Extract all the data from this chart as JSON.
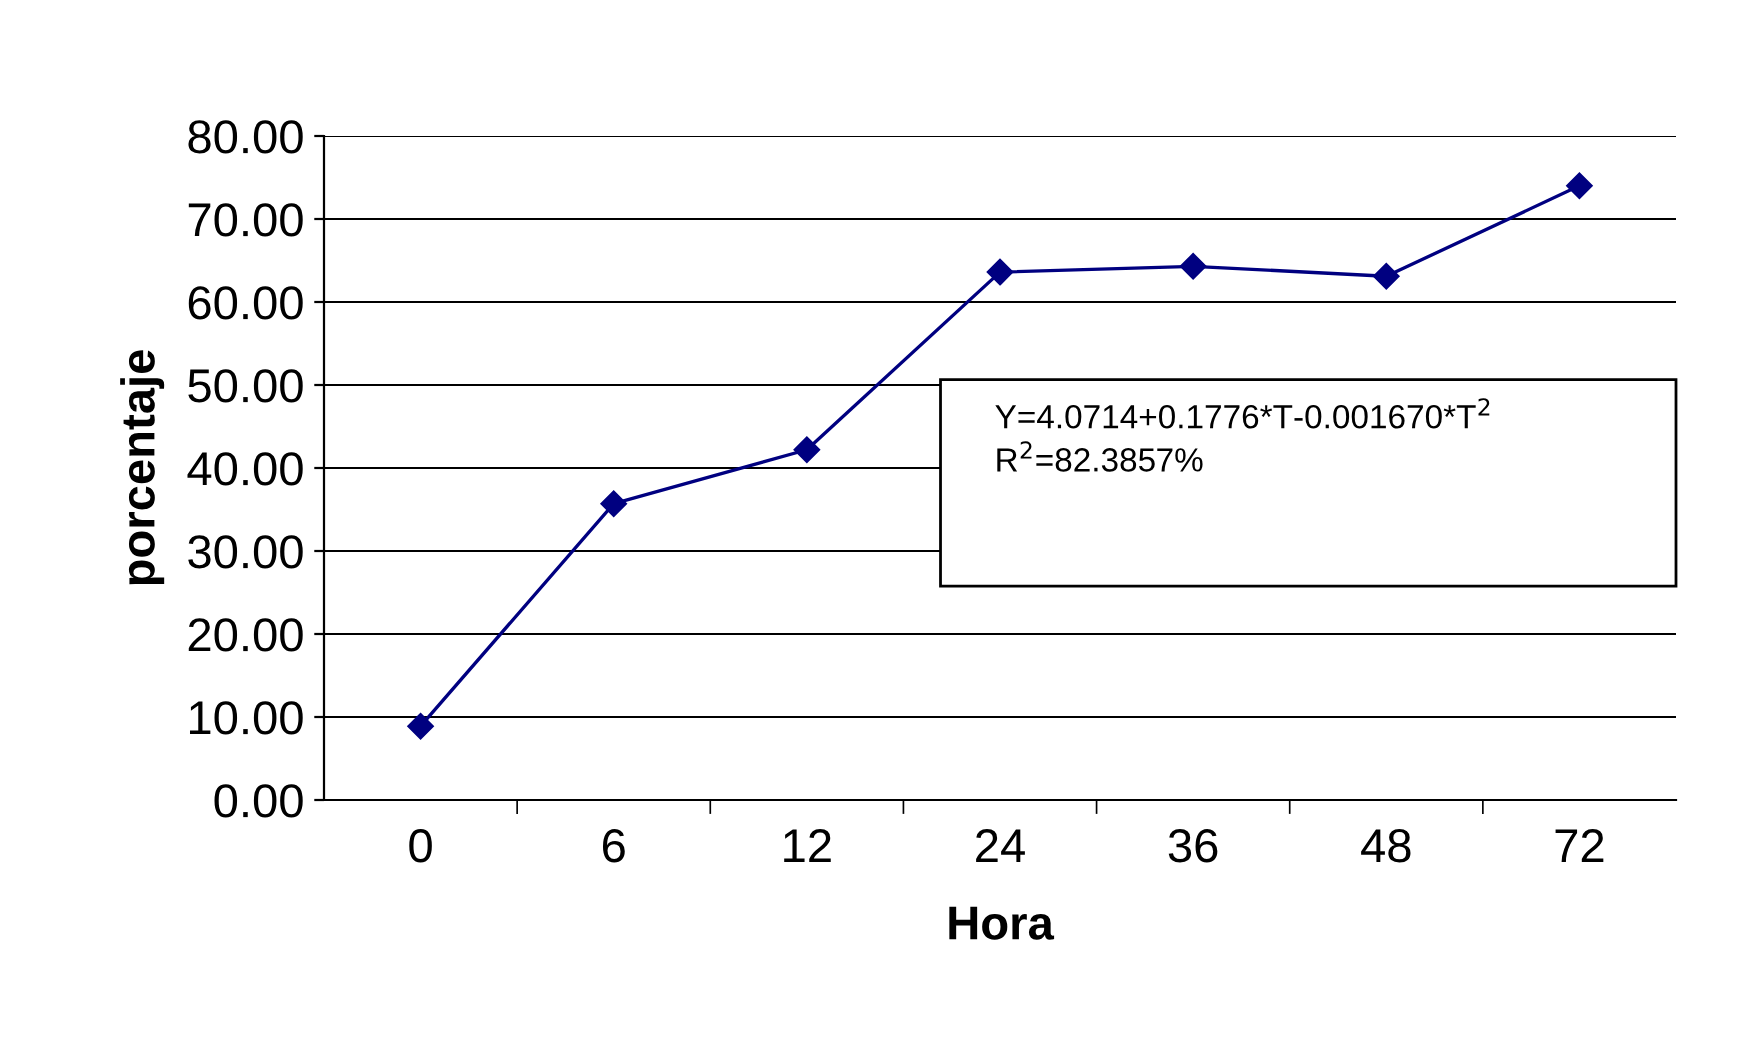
{
  "chart_data": {
    "type": "line",
    "xlabel": "Hora",
    "ylabel": "porcentaje",
    "categories": [
      "0",
      "6",
      "12",
      "24",
      "36",
      "48",
      "72"
    ],
    "series": [
      {
        "color": "#000080",
        "values": [
          8.9,
          35.7,
          42.2,
          63.6,
          64.3,
          63.1,
          74.0
        ]
      }
    ],
    "ylim": [
      0,
      80
    ],
    "yticks": [
      {
        "value": 0,
        "label": "0.00"
      },
      {
        "value": 10,
        "label": "10.00"
      },
      {
        "value": 20,
        "label": "20.00"
      },
      {
        "value": 30,
        "label": "30.00"
      },
      {
        "value": 40,
        "label": "40.00"
      },
      {
        "value": 50,
        "label": "50.00"
      },
      {
        "value": 60,
        "label": "60.00"
      },
      {
        "value": 70,
        "label": "70.00"
      },
      {
        "value": 80,
        "label": "80.00"
      }
    ],
    "grid": "y",
    "marker": "diamond",
    "line_style": "solid",
    "legend": false,
    "annotations": [
      "Y=4.0714+0.1776*T-0.001670*T$^{2}$\nR$^{2}$=82.3857%"
    ]
  }
}
